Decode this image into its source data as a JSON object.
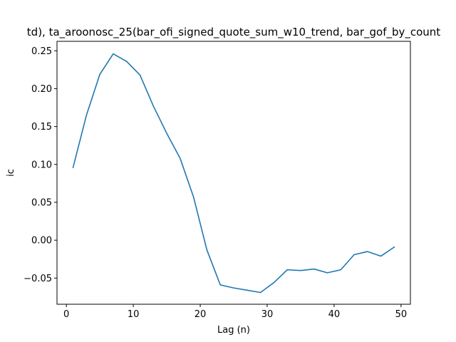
{
  "chart_data": {
    "type": "line",
    "title": "td), ta_aroonosc_25(bar_ofi_signed_quote_sum_w10_trend, bar_gof_by_count",
    "xlabel": "Lag (n)",
    "ylabel": "ic",
    "xlim": [
      -1.4,
      51.4
    ],
    "ylim": [
      -0.0845,
      0.2625
    ],
    "xticks": [
      0,
      10,
      20,
      30,
      40,
      50
    ],
    "xtick_labels": [
      "0",
      "10",
      "20",
      "30",
      "40",
      "50"
    ],
    "yticks": [
      -0.05,
      0.0,
      0.05,
      0.1,
      0.15,
      0.2,
      0.25
    ],
    "ytick_labels": [
      "−0.05",
      "0.00",
      "0.05",
      "0.10",
      "0.15",
      "0.20",
      "0.25"
    ],
    "grid": false,
    "series": [
      {
        "color": "#1f77b4",
        "x": [
          1,
          3,
          5,
          7,
          9,
          11,
          13,
          15,
          17,
          19,
          21,
          23,
          25,
          27,
          29,
          31,
          33,
          35,
          37,
          39,
          41,
          43,
          45,
          47,
          49
        ],
        "y": [
          0.096,
          0.165,
          0.219,
          0.246,
          0.236,
          0.218,
          0.177,
          0.141,
          0.108,
          0.057,
          -0.013,
          -0.059,
          -0.063,
          -0.066,
          -0.069,
          -0.056,
          -0.039,
          -0.04,
          -0.038,
          -0.043,
          -0.039,
          -0.019,
          -0.015,
          -0.021,
          -0.009
        ]
      }
    ]
  }
}
